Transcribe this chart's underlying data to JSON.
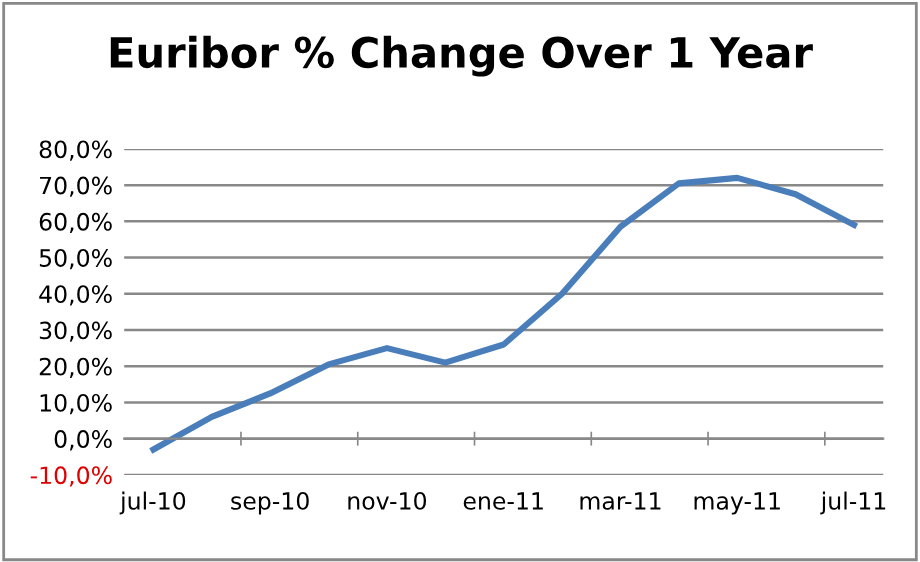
{
  "chart_data": {
    "type": "line",
    "title": "Euribor % Change Over 1 Year",
    "categories": [
      "jul-10",
      null,
      "sep-10",
      null,
      "nov-10",
      null,
      "ene-11",
      null,
      "mar-11",
      null,
      "may-11",
      null,
      "jul-11"
    ],
    "series": [
      {
        "color": "#4a7ebb",
        "values": [
          -3,
          6,
          12.5,
          20.5,
          25,
          21,
          26,
          40,
          58.5,
          70.5,
          72,
          67.5,
          59
        ]
      }
    ],
    "ylim": [
      -10,
      80
    ],
    "yticks": [
      {
        "value": -10,
        "label": "-10,0%"
      },
      {
        "value": 0,
        "label": "0,0%"
      },
      {
        "value": 10,
        "label": "10,0%"
      },
      {
        "value": 20,
        "label": "20,0%"
      },
      {
        "value": 30,
        "label": "30,0%"
      },
      {
        "value": 40,
        "label": "40,0%"
      },
      {
        "value": 50,
        "label": "50,0%"
      },
      {
        "value": 60,
        "label": "60,0%"
      },
      {
        "value": 70,
        "label": "70,0%"
      },
      {
        "value": 80,
        "label": "80,0%"
      }
    ],
    "grid": "y",
    "marker": "none",
    "line_style": "solid"
  }
}
